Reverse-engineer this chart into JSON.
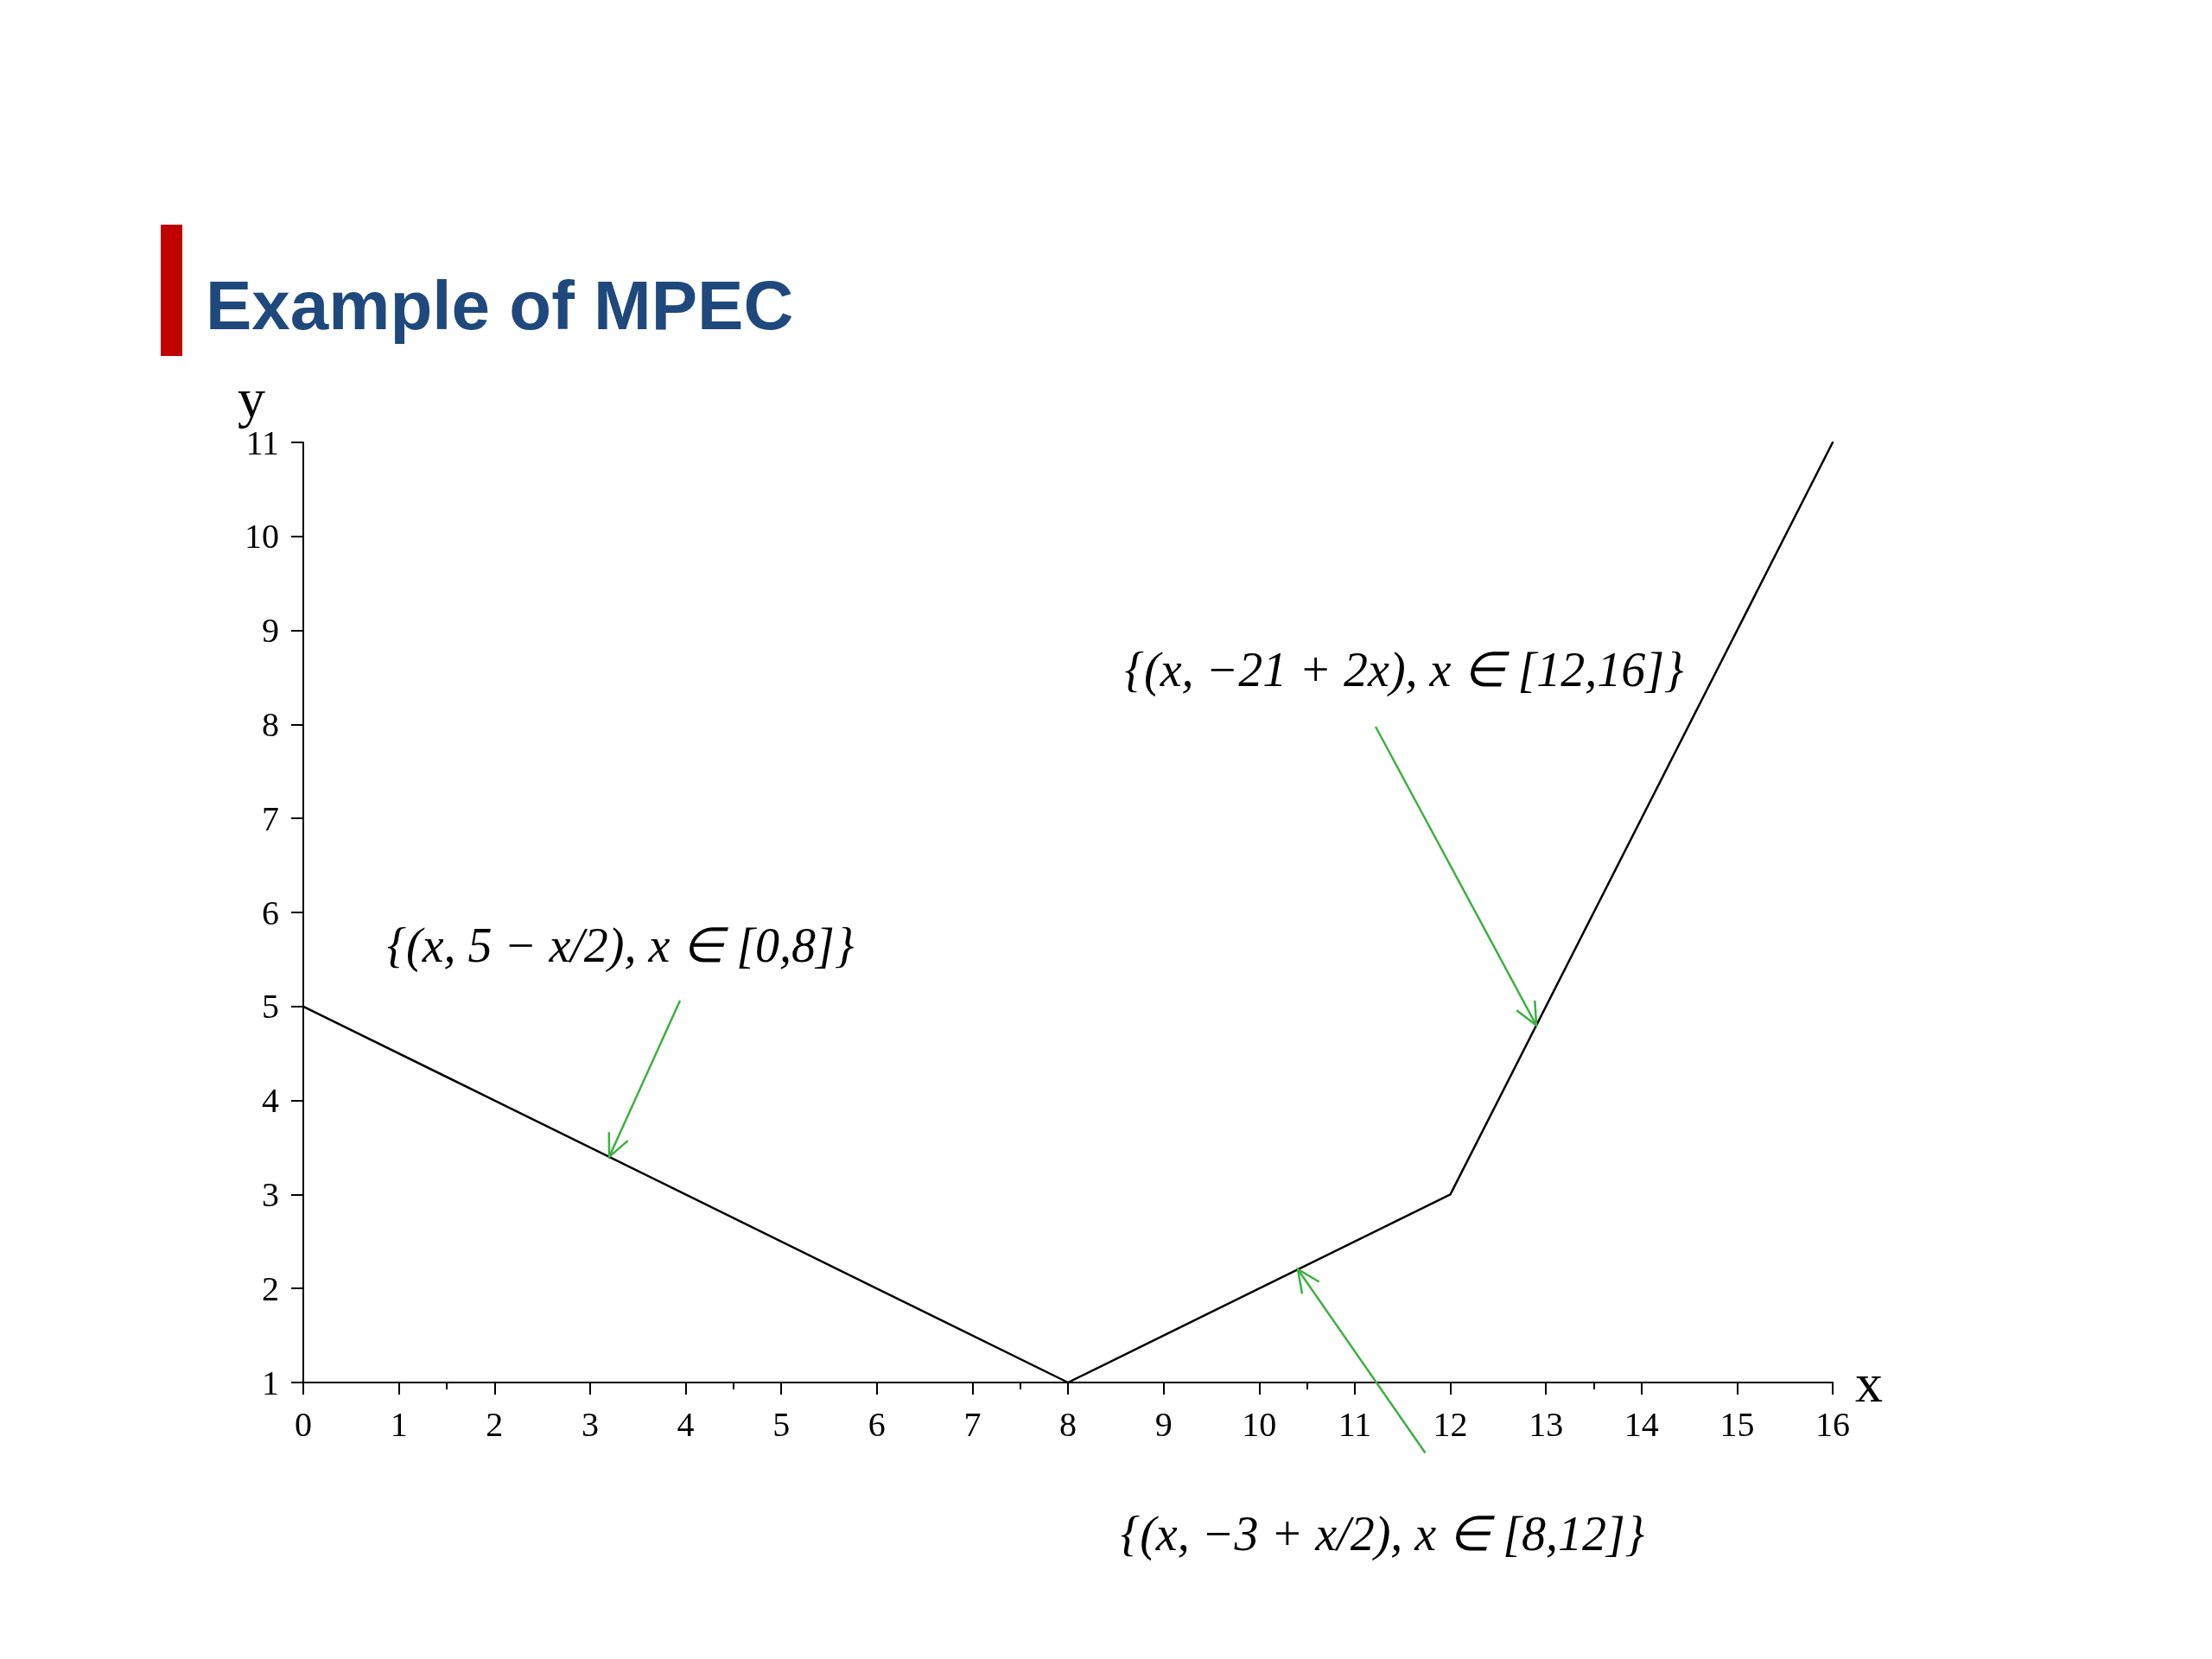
{
  "chart_data": {
    "type": "line",
    "title": "Example of MPEC",
    "xlabel": "x",
    "ylabel": "y",
    "x": [
      0,
      8,
      12,
      16
    ],
    "series": [
      {
        "color": "#000000",
        "values": [
          5,
          1,
          3,
          11
        ]
      }
    ],
    "xlim": [
      0,
      16
    ],
    "xticks": [
      0,
      1,
      2,
      3,
      4,
      5,
      6,
      7,
      8,
      9,
      10,
      11,
      12,
      13,
      14,
      15,
      16
    ],
    "ylim": [
      1,
      11
    ],
    "yticks": [
      1,
      2,
      3,
      4,
      5,
      6,
      7,
      8,
      9,
      10,
      11
    ],
    "grid": false,
    "marker": "none",
    "line_style": "solid",
    "annotations": [
      {
        "text": "{(x, 5 − x/2), x ∈ [0,8]}",
        "x": 3.2,
        "y": 3.4
      },
      {
        "text": "{(x, −21 + 2x), x ∈ [12,16]}",
        "x": 12.9,
        "y": 4.8
      },
      {
        "text": "{(x, −3 + x/2), x ∈ [8,12]}",
        "x": 10.4,
        "y": 2.2
      }
    ]
  }
}
